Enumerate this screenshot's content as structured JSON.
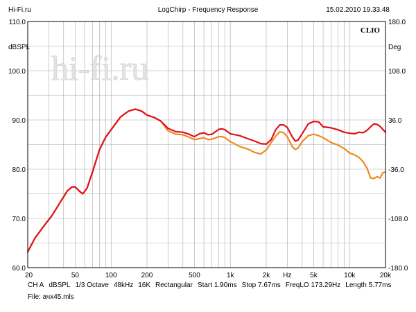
{
  "header": {
    "site": "Hi-Fi.ru",
    "title": "LogChirp - Frequency Response",
    "datetime": "15.02.2010 19.33.48"
  },
  "chart_data": {
    "type": "line",
    "title": "LogChirp - Frequency Response",
    "xscale": "log",
    "xlim": [
      20,
      20000
    ],
    "ylim": [
      60,
      110
    ],
    "y2lim": [
      -180,
      180
    ],
    "ylabel": "dBSPL",
    "y2label": "Deg",
    "xlabel": "Hz",
    "watermark": "hi-fi.ru",
    "brand": "CLIO",
    "yticks": [
      "60.0",
      "70.0",
      "80.0",
      "90.0",
      "100.0",
      "110.0"
    ],
    "y2ticks": [
      "-180.0",
      "-108.0",
      "-36.0",
      "36.0",
      "108.0",
      "180.0"
    ],
    "xticks": [
      {
        "v": 20,
        "label": "20"
      },
      {
        "v": 50,
        "label": "50"
      },
      {
        "v": 100,
        "label": "100"
      },
      {
        "v": 200,
        "label": "200"
      },
      {
        "v": 500,
        "label": "500"
      },
      {
        "v": 1000,
        "label": "1k"
      },
      {
        "v": 2000,
        "label": "2k"
      },
      {
        "v": 3000,
        "label": "Hz"
      },
      {
        "v": 5000,
        "label": "5k"
      },
      {
        "v": 10000,
        "label": "10k"
      },
      {
        "v": 20000,
        "label": "20k"
      }
    ],
    "series": [
      {
        "name": "Response (red)",
        "color": "#e0101a",
        "points": [
          [
            20,
            63.2
          ],
          [
            23,
            66
          ],
          [
            27,
            68.3
          ],
          [
            32,
            70.6
          ],
          [
            38,
            73.5
          ],
          [
            43,
            75.6
          ],
          [
            47,
            76.4
          ],
          [
            50,
            76.4
          ],
          [
            55,
            75.4
          ],
          [
            58,
            75
          ],
          [
            63,
            76.2
          ],
          [
            70,
            79.5
          ],
          [
            80,
            84
          ],
          [
            90,
            86.5
          ],
          [
            100,
            88
          ],
          [
            120,
            90.6
          ],
          [
            140,
            91.8
          ],
          [
            160,
            92.2
          ],
          [
            180,
            91.8
          ],
          [
            200,
            91
          ],
          [
            230,
            90.5
          ],
          [
            260,
            89.8
          ],
          [
            300,
            88.3
          ],
          [
            350,
            87.6
          ],
          [
            400,
            87.5
          ],
          [
            450,
            87.1
          ],
          [
            500,
            86.6
          ],
          [
            550,
            87.2
          ],
          [
            600,
            87.4
          ],
          [
            650,
            87.0
          ],
          [
            700,
            87.1
          ],
          [
            800,
            88.1
          ],
          [
            850,
            88.2
          ],
          [
            900,
            88.0
          ],
          [
            1000,
            87.2
          ],
          [
            1200,
            86.8
          ],
          [
            1400,
            86.2
          ],
          [
            1600,
            85.7
          ],
          [
            1800,
            85.2
          ],
          [
            2000,
            85.1
          ],
          [
            2200,
            86.0
          ],
          [
            2400,
            88.0
          ],
          [
            2600,
            89
          ],
          [
            2800,
            89
          ],
          [
            3000,
            88.5
          ],
          [
            3300,
            86.6
          ],
          [
            3500,
            85.7
          ],
          [
            3700,
            85.9
          ],
          [
            4000,
            87.2
          ],
          [
            4500,
            89.2
          ],
          [
            5000,
            89.7
          ],
          [
            5500,
            89.6
          ],
          [
            6000,
            88.6
          ],
          [
            7000,
            88.4
          ],
          [
            8000,
            88.0
          ],
          [
            9000,
            87.5
          ],
          [
            10000,
            87.3
          ],
          [
            11000,
            87.2
          ],
          [
            12000,
            87.5
          ],
          [
            13000,
            87.4
          ],
          [
            14000,
            87.9
          ],
          [
            15000,
            88.6
          ],
          [
            16000,
            89.2
          ],
          [
            17000,
            89.1
          ],
          [
            18000,
            88.7
          ],
          [
            20000,
            87.5
          ]
        ]
      },
      {
        "name": "Response (orange)",
        "color": "#ee8a1c",
        "points": [
          [
            20,
            63.2
          ],
          [
            23,
            66
          ],
          [
            27,
            68.3
          ],
          [
            32,
            70.6
          ],
          [
            38,
            73.5
          ],
          [
            43,
            75.6
          ],
          [
            47,
            76.4
          ],
          [
            50,
            76.4
          ],
          [
            55,
            75.4
          ],
          [
            58,
            75
          ],
          [
            63,
            76.2
          ],
          [
            70,
            79.5
          ],
          [
            80,
            84
          ],
          [
            90,
            86.5
          ],
          [
            100,
            88
          ],
          [
            120,
            90.6
          ],
          [
            140,
            91.8
          ],
          [
            160,
            92.2
          ],
          [
            180,
            91.8
          ],
          [
            200,
            91
          ],
          [
            230,
            90.5
          ],
          [
            260,
            89.8
          ],
          [
            300,
            87.8
          ],
          [
            350,
            87.1
          ],
          [
            400,
            87.0
          ],
          [
            450,
            86.5
          ],
          [
            500,
            86.0
          ],
          [
            550,
            86.2
          ],
          [
            600,
            86.4
          ],
          [
            650,
            86.0
          ],
          [
            700,
            86.1
          ],
          [
            800,
            86.6
          ],
          [
            850,
            86.6
          ],
          [
            900,
            86.4
          ],
          [
            1000,
            85.6
          ],
          [
            1200,
            84.6
          ],
          [
            1400,
            84.1
          ],
          [
            1600,
            83.4
          ],
          [
            1800,
            83.1
          ],
          [
            2000,
            83.9
          ],
          [
            2200,
            85.4
          ],
          [
            2400,
            86.7
          ],
          [
            2600,
            87.6
          ],
          [
            2800,
            87.4
          ],
          [
            3000,
            86.6
          ],
          [
            3300,
            84.6
          ],
          [
            3500,
            84.0
          ],
          [
            3700,
            84.3
          ],
          [
            4000,
            85.6
          ],
          [
            4500,
            86.8
          ],
          [
            5000,
            87.1
          ],
          [
            5500,
            86.8
          ],
          [
            6000,
            86.4
          ],
          [
            7000,
            85.4
          ],
          [
            8000,
            84.9
          ],
          [
            9000,
            84.2
          ],
          [
            10000,
            83.3
          ],
          [
            11000,
            82.9
          ],
          [
            12000,
            82.4
          ],
          [
            13000,
            81.5
          ],
          [
            14000,
            80.2
          ],
          [
            15000,
            78.2
          ],
          [
            16000,
            78.1
          ],
          [
            17000,
            78.5
          ],
          [
            18000,
            78.2
          ],
          [
            19000,
            79.3
          ],
          [
            20000,
            79.4
          ]
        ]
      }
    ]
  },
  "footer": {
    "channel": "CH A",
    "unit": "dBSPL",
    "smoothing": "1/3 Octave",
    "rate": "48kHz",
    "size": "16K",
    "window": "Rectangular",
    "start": "Start 1.90ms",
    "stop": "Stop 7.67ms",
    "freqlo": "FreqLO 173.29Hz",
    "length": "Length 5.77ms",
    "file": "File: ачх45.mls"
  }
}
